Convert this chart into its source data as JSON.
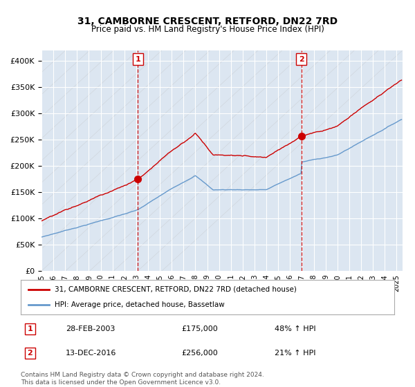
{
  "title": "31, CAMBORNE CRESCENT, RETFORD, DN22 7RD",
  "subtitle": "Price paid vs. HM Land Registry's House Price Index (HPI)",
  "ylim": [
    0,
    420000
  ],
  "yticks": [
    0,
    50000,
    100000,
    150000,
    200000,
    250000,
    300000,
    350000,
    400000
  ],
  "plot_bg_color": "#dce6f1",
  "grid_color": "#ffffff",
  "sale1_date_num": 2003.15,
  "sale1_price": 175000,
  "sale1_date_str": "28-FEB-2003",
  "sale1_pct": "48%",
  "sale2_date_num": 2016.95,
  "sale2_price": 256000,
  "sale2_date_str": "13-DEC-2016",
  "sale2_pct": "21%",
  "red_line_color": "#cc0000",
  "blue_line_color": "#6699cc",
  "marker_color": "#cc0000",
  "dashed_line_color": "#cc0000",
  "legend_label_red": "31, CAMBORNE CRESCENT, RETFORD, DN22 7RD (detached house)",
  "legend_label_blue": "HPI: Average price, detached house, Bassetlaw",
  "footer1": "Contains HM Land Registry data © Crown copyright and database right 2024.",
  "footer2": "This data is licensed under the Open Government Licence v3.0.",
  "xmin": 1995.0,
  "xmax": 2025.5
}
